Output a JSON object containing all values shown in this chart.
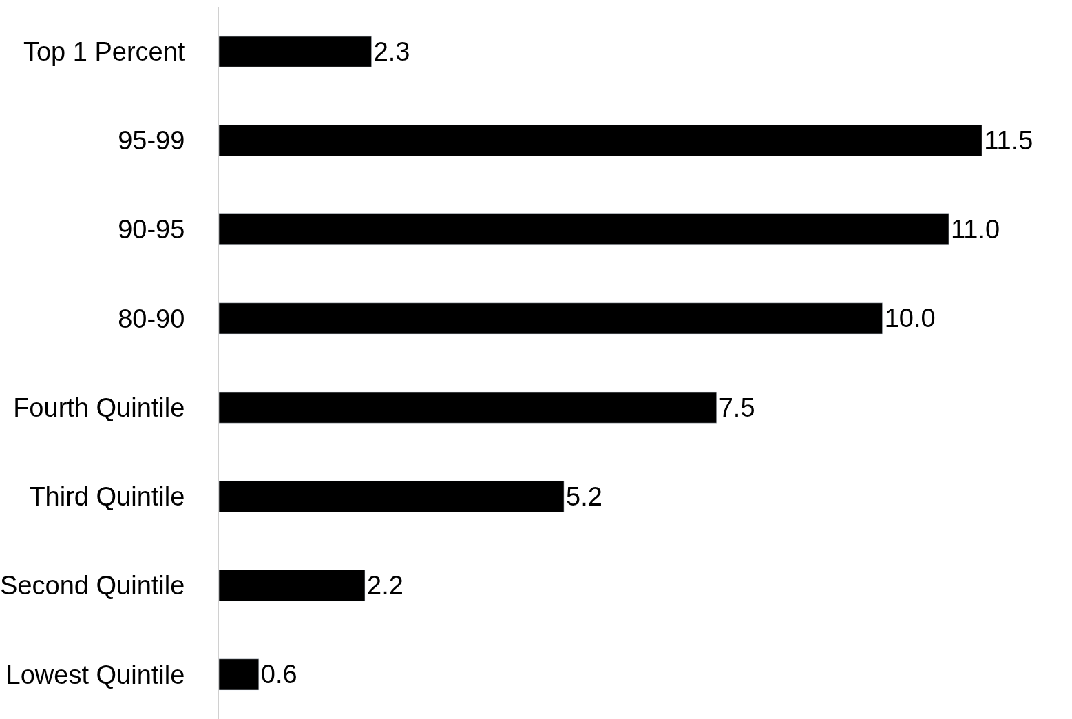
{
  "chart_data": {
    "type": "bar",
    "orientation": "horizontal",
    "categories": [
      "Top 1 Percent",
      "95-99",
      "90-95",
      "80-90",
      "Fourth Quintile",
      "Third Quintile",
      "Second Quintile",
      "Lowest Quintile"
    ],
    "values": [
      2.3,
      11.5,
      11.0,
      10.0,
      7.5,
      5.2,
      2.2,
      0.6
    ],
    "value_labels": [
      "2.3",
      "11.5",
      "11.0",
      "10.0",
      "7.5",
      "5.2",
      "2.2",
      "0.6"
    ],
    "color": "#000000"
  }
}
